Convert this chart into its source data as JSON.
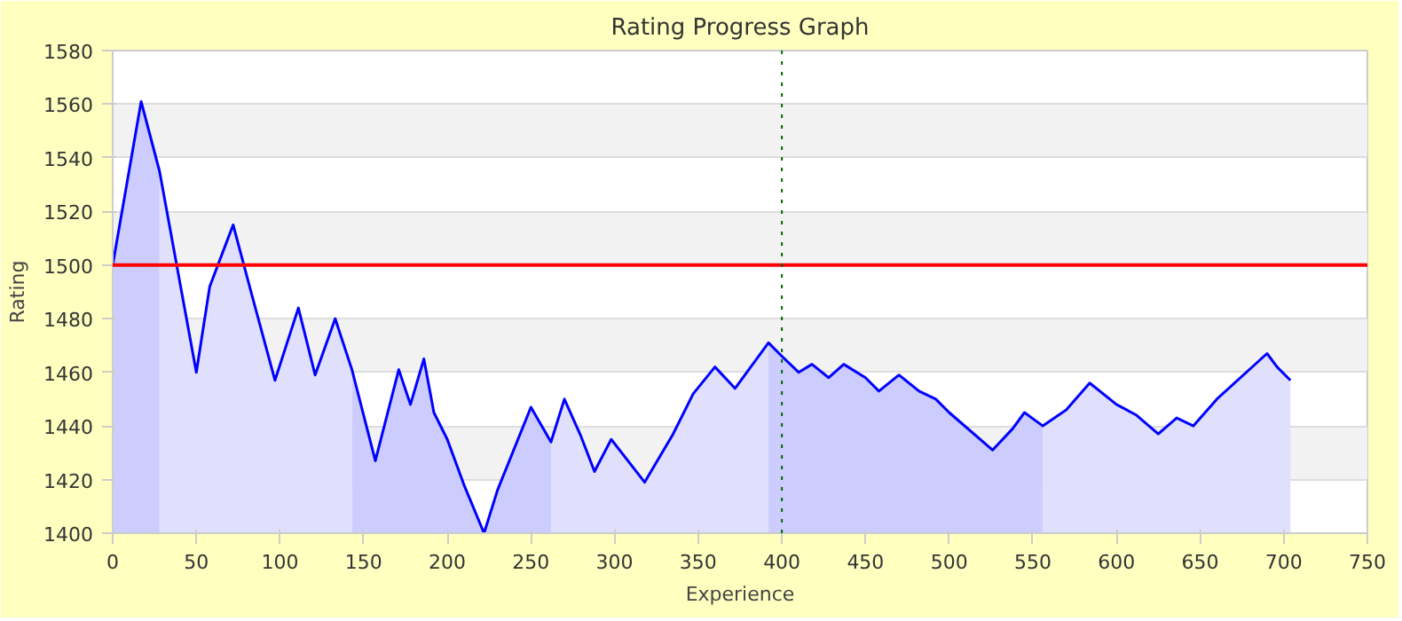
{
  "chart_data": {
    "type": "line",
    "title": "Rating Progress Graph",
    "xlabel": "Experience",
    "ylabel": "Rating",
    "xlim": [
      0,
      750
    ],
    "ylim": [
      1400,
      1580
    ],
    "xticks": [
      0,
      50,
      100,
      150,
      200,
      250,
      300,
      350,
      400,
      450,
      500,
      550,
      600,
      650,
      700,
      750
    ],
    "yticks": [
      1400,
      1420,
      1440,
      1460,
      1480,
      1500,
      1520,
      1540,
      1560,
      1580
    ],
    "grid": "y",
    "marker": "none",
    "line_style": "solid",
    "ref_lines": [
      {
        "axis": "y",
        "value": 1500,
        "label": null,
        "color": "#ff0000",
        "line_style": "solid"
      },
      {
        "axis": "x",
        "value": 400,
        "label": null,
        "color": "#006600",
        "line_style": "dotted"
      }
    ],
    "series": [
      {
        "type": "area",
        "color": "#ccccff",
        "x": [
          0,
          17,
          28
        ],
        "values": [
          1500,
          1561,
          1535
        ]
      },
      {
        "type": "area",
        "color": "#e0e0fc",
        "x": [
          28,
          50,
          58,
          72,
          84,
          97,
          111,
          121,
          133,
          143
        ],
        "values": [
          1535,
          1460,
          1492,
          1515,
          1487,
          1457,
          1484,
          1459,
          1480,
          1461
        ]
      },
      {
        "type": "area",
        "color": "#ccccff",
        "x": [
          143,
          157,
          171,
          178,
          186,
          192,
          200,
          210,
          222,
          230,
          250,
          262
        ],
        "values": [
          1461,
          1427,
          1461,
          1448,
          1465,
          1445,
          1435,
          1418,
          1400,
          1416,
          1447,
          1434
        ]
      },
      {
        "type": "area",
        "color": "#e0e0fc",
        "x": [
          262,
          270,
          280,
          288,
          298,
          318,
          335,
          347,
          360,
          372,
          392
        ],
        "values": [
          1434,
          1450,
          1436,
          1423,
          1435,
          1419,
          1437,
          1452,
          1462,
          1454,
          1471
        ]
      },
      {
        "type": "area",
        "color": "#ccccff",
        "x": [
          392,
          400,
          410,
          418,
          428,
          437,
          450,
          458,
          470,
          482,
          492,
          500,
          526,
          538,
          545,
          556
        ],
        "values": [
          1471,
          1466,
          1460,
          1463,
          1458,
          1463,
          1458,
          1453,
          1459,
          1453,
          1450,
          1445,
          1431,
          1439,
          1445,
          1440
        ]
      },
      {
        "type": "area",
        "color": "#e0e0fc",
        "x": [
          556,
          570,
          584,
          600,
          612,
          625,
          636,
          646,
          660,
          690,
          696,
          704
        ],
        "values": [
          1440,
          1446,
          1456,
          1448,
          1444,
          1437,
          1443,
          1440,
          1450,
          1467,
          1462,
          1457
        ]
      },
      {
        "color": "#0000ff",
        "x": [
          0,
          17,
          28,
          50,
          58,
          72,
          84,
          97,
          111,
          121,
          133,
          143,
          157,
          171,
          178,
          186,
          192,
          200,
          210,
          222,
          230,
          250,
          262,
          270,
          280,
          288,
          298,
          318,
          335,
          347,
          360,
          372,
          392,
          400,
          410,
          418,
          428,
          437,
          450,
          458,
          470,
          482,
          492,
          500,
          526,
          538,
          545,
          556,
          570,
          584,
          600,
          612,
          625,
          636,
          646,
          660,
          690,
          696,
          704
        ],
        "values": [
          1500,
          1561,
          1535,
          1460,
          1492,
          1515,
          1487,
          1457,
          1484,
          1459,
          1480,
          1461,
          1427,
          1461,
          1448,
          1465,
          1445,
          1435,
          1418,
          1400,
          1416,
          1447,
          1434,
          1450,
          1436,
          1423,
          1435,
          1419,
          1437,
          1452,
          1462,
          1454,
          1471,
          1466,
          1460,
          1463,
          1458,
          1463,
          1458,
          1453,
          1459,
          1453,
          1450,
          1445,
          1431,
          1439,
          1445,
          1440,
          1446,
          1456,
          1448,
          1444,
          1437,
          1443,
          1440,
          1450,
          1467,
          1462,
          1457
        ]
      }
    ]
  }
}
